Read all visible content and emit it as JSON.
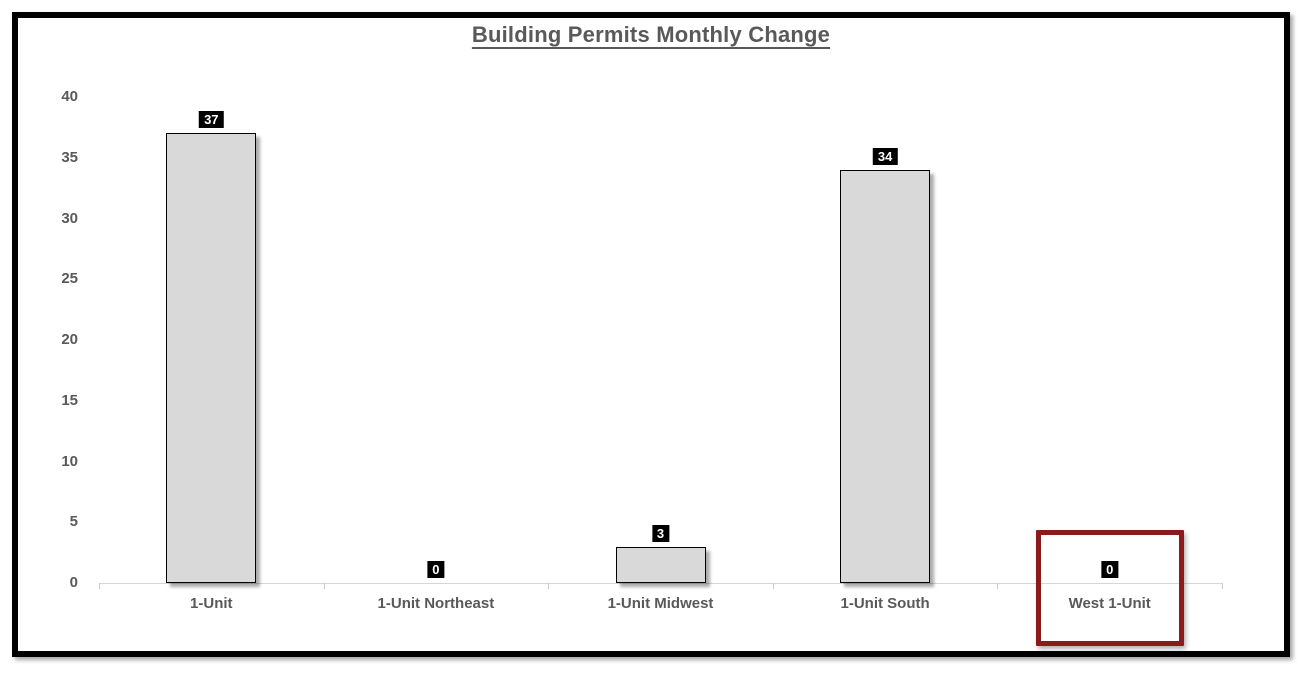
{
  "title": "Building Permits Monthly Change",
  "chart_data": {
    "type": "bar",
    "title": "Building Permits Monthly Change",
    "categories": [
      "1-Unit",
      "1-Unit Northeast",
      "1-Unit Midwest",
      "1-Unit South",
      "West 1-Unit"
    ],
    "values": [
      37,
      0,
      3,
      34,
      0
    ],
    "data_labels": [
      "37",
      "0",
      "3",
      "34",
      "0"
    ],
    "xlabel": "",
    "ylabel": "",
    "ylim": [
      0,
      40
    ],
    "yticks": [
      0,
      5,
      10,
      15,
      20,
      25,
      30,
      35,
      40
    ],
    "grid": false,
    "legend": false,
    "colors": {
      "bar_fill": "#D9D9D9",
      "bar_border": "#000000",
      "data_label_bg": "#000000",
      "data_label_text": "#FFFFFF",
      "axis_line": "#D6D6D6",
      "text": "#595959",
      "title_text": "#595959",
      "frame_border": "#000000",
      "highlight_border": "#8B1B1B"
    },
    "highlight": {
      "category": "West 1-Unit",
      "border_color": "#8B1B1B"
    }
  }
}
